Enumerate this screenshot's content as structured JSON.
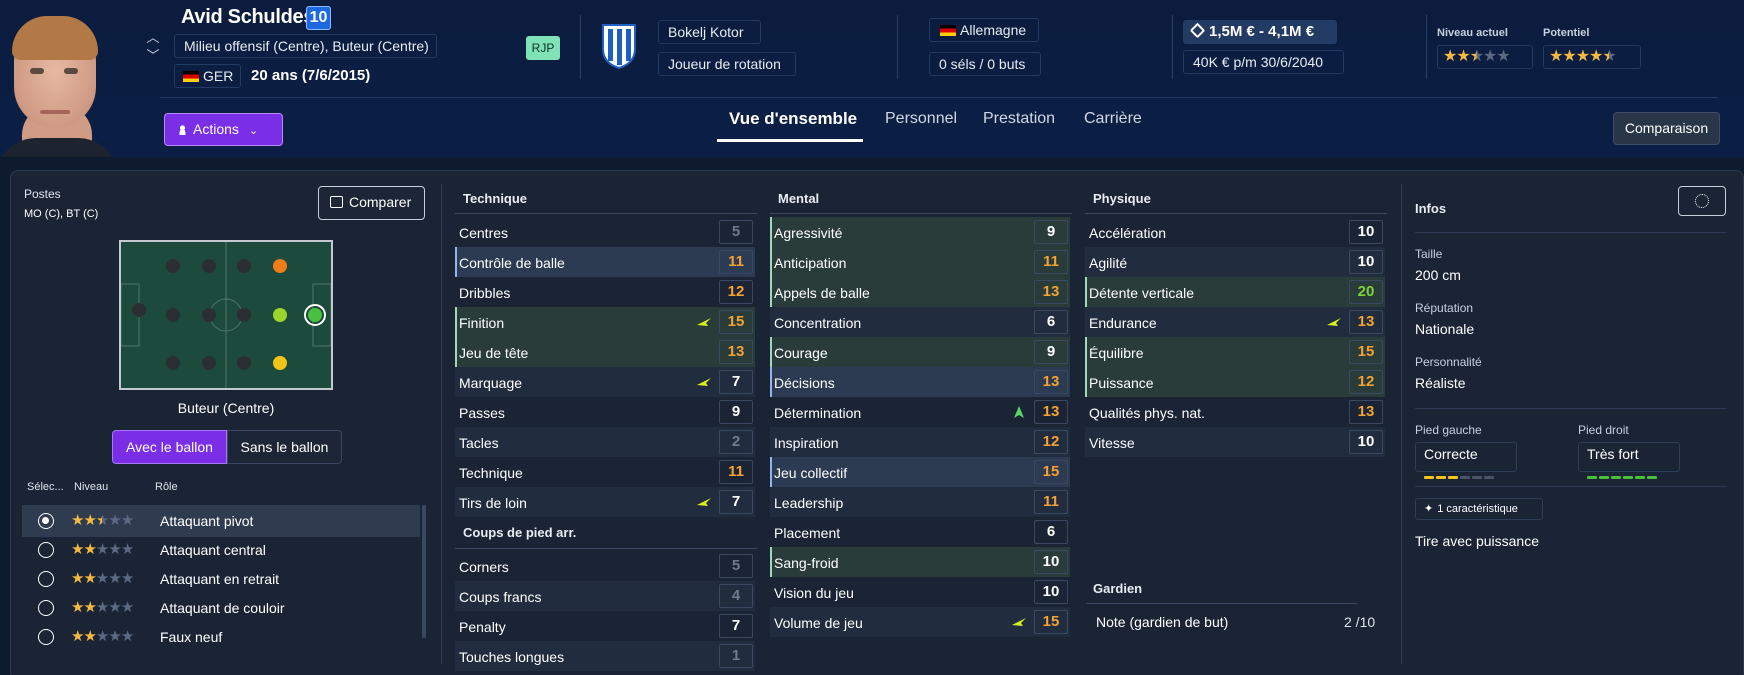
{
  "player": {
    "name": "Avid Schuldes",
    "number": "10",
    "positions": "Milieu offensif (Centre), Buteur (Centre)",
    "nationality_code": "GER",
    "age": "20 ans (7/6/2015)",
    "status_badge": "RJP",
    "club": "Bokelj Kotor",
    "squad_role": "Joueur de rotation",
    "national_team": "Allemagne",
    "caps": "0 séls / 0 buts",
    "value": "1,5M € - 4,1M €",
    "wage": "40K € p/m 30/6/2040",
    "current_level_label": "Niveau actuel",
    "potential_label": "Potentiel",
    "current_level_stars": 2.5,
    "potential_stars": 4.5
  },
  "header": {
    "actions_label": "Actions",
    "compare_label": "Comparaison",
    "tabs": [
      "Vue d'ensemble",
      "Personnel",
      "Prestation",
      "Carrière"
    ],
    "active_tab": "Vue d'ensemble"
  },
  "left_panel": {
    "positions_label": "Postes",
    "positions_short": "MO (C), BT (C)",
    "compare_button": "Comparer",
    "selected_position": "Buteur (Centre)",
    "with_ball": "Avec le ballon",
    "without_ball": "Sans le ballon",
    "role_headers": {
      "select": "Sélec...",
      "level": "Niveau",
      "role": "Rôle"
    },
    "roles": [
      {
        "name": "Attaquant pivot",
        "stars": 2.5,
        "selected": true
      },
      {
        "name": "Attaquant central",
        "stars": 2,
        "selected": false
      },
      {
        "name": "Attaquant en retrait",
        "stars": 2,
        "selected": false
      },
      {
        "name": "Attaquant de couloir",
        "stars": 2,
        "selected": false
      },
      {
        "name": "Faux neuf",
        "stars": 2,
        "selected": false
      }
    ]
  },
  "colors": {
    "accent": "#7a2ee6",
    "star": "#f4b942",
    "value_orange": "#f3a233",
    "value_green": "#7fd23c",
    "pitch": "#1c4a3c"
  },
  "attributes": {
    "technique": {
      "title": "Technique",
      "items": [
        {
          "name": "Centres",
          "value": "5",
          "tone": "dim"
        },
        {
          "name": "Contrôle de balle",
          "value": "11",
          "tone": "orange",
          "hl": "blue"
        },
        {
          "name": "Dribbles",
          "value": "12",
          "tone": "orange"
        },
        {
          "name": "Finition",
          "value": "15",
          "tone": "orange",
          "hl": "green",
          "trend": "up-right"
        },
        {
          "name": "Jeu de tête",
          "value": "13",
          "tone": "orange",
          "hl": "green"
        },
        {
          "name": "Marquage",
          "value": "7",
          "tone": "white",
          "trend": "up-right"
        },
        {
          "name": "Passes",
          "value": "9",
          "tone": "white"
        },
        {
          "name": "Tacles",
          "value": "2",
          "tone": "dim"
        },
        {
          "name": "Technique",
          "value": "11",
          "tone": "orange"
        },
        {
          "name": "Tirs de loin",
          "value": "7",
          "tone": "white",
          "trend": "up-right"
        }
      ]
    },
    "set_pieces": {
      "title": "Coups de pied arr.",
      "items": [
        {
          "name": "Corners",
          "value": "5",
          "tone": "dim"
        },
        {
          "name": "Coups francs",
          "value": "4",
          "tone": "dim"
        },
        {
          "name": "Penalty",
          "value": "7",
          "tone": "white"
        },
        {
          "name": "Touches longues",
          "value": "1",
          "tone": "dim"
        }
      ]
    },
    "mental": {
      "title": "Mental",
      "items": [
        {
          "name": "Agressivité",
          "value": "9",
          "tone": "white",
          "hl": "green"
        },
        {
          "name": "Anticipation",
          "value": "11",
          "tone": "orange",
          "hl": "green"
        },
        {
          "name": "Appels de balle",
          "value": "13",
          "tone": "orange",
          "hl": "green"
        },
        {
          "name": "Concentration",
          "value": "6",
          "tone": "white"
        },
        {
          "name": "Courage",
          "value": "9",
          "tone": "white",
          "hl": "green"
        },
        {
          "name": "Décisions",
          "value": "13",
          "tone": "orange",
          "hl": "blue"
        },
        {
          "name": "Détermination",
          "value": "13",
          "tone": "orange",
          "trend": "up"
        },
        {
          "name": "Inspiration",
          "value": "12",
          "tone": "orange"
        },
        {
          "name": "Jeu collectif",
          "value": "15",
          "tone": "orange",
          "hl": "blue"
        },
        {
          "name": "Leadership",
          "value": "11",
          "tone": "orange"
        },
        {
          "name": "Placement",
          "value": "6",
          "tone": "white"
        },
        {
          "name": "Sang-froid",
          "value": "10",
          "tone": "white",
          "hl": "green"
        },
        {
          "name": "Vision du jeu",
          "value": "10",
          "tone": "white"
        },
        {
          "name": "Volume de jeu",
          "value": "15",
          "tone": "orange",
          "trend": "up-right"
        }
      ]
    },
    "physical": {
      "title": "Physique",
      "items": [
        {
          "name": "Accélération",
          "value": "10",
          "tone": "white"
        },
        {
          "name": "Agilité",
          "value": "10",
          "tone": "white"
        },
        {
          "name": "Détente verticale",
          "value": "20",
          "tone": "green",
          "hl": "green"
        },
        {
          "name": "Endurance",
          "value": "13",
          "tone": "orange",
          "trend": "up-right"
        },
        {
          "name": "Équilibre",
          "value": "15",
          "tone": "orange",
          "hl": "green"
        },
        {
          "name": "Puissance",
          "value": "12",
          "tone": "orange",
          "hl": "green"
        },
        {
          "name": "Qualités phys. nat.",
          "value": "13",
          "tone": "orange"
        },
        {
          "name": "Vitesse",
          "value": "10",
          "tone": "white"
        }
      ]
    },
    "goalkeeper": {
      "title": "Gardien",
      "note_label": "Note (gardien de but)",
      "note_value": "2 /10"
    }
  },
  "info": {
    "title": "Infos",
    "height_label": "Taille",
    "height": "200 cm",
    "reputation_label": "Réputation",
    "reputation": "Nationale",
    "personality_label": "Personnalité",
    "personality": "Réaliste",
    "left_foot_label": "Pied gauche",
    "left_foot": "Correcte",
    "left_foot_level": 3,
    "right_foot_label": "Pied droit",
    "right_foot": "Très fort",
    "right_foot_level": 6,
    "traits_badge": "1 caractéristique",
    "trait": "Tire avec puissance"
  }
}
